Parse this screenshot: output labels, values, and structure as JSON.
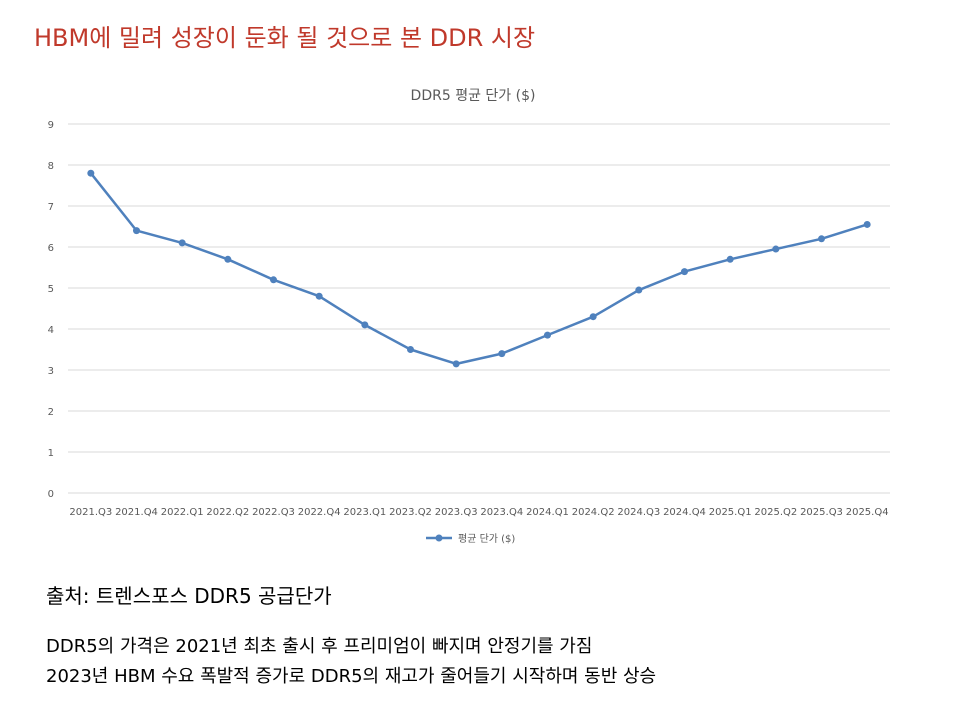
{
  "slide": {
    "title": "HBM에 밀려 성장이 둔화 될 것으로 본 DDR 시장",
    "source": "출처: 트렌스포스 DDR5 공급단가",
    "notes": [
      "DDR5의 가격은 2021년 최초 출시 후 프리미엄이 빠지며 안정기를 가짐",
      "2023년 HBM 수요 폭발적 증가로 DDR5의 재고가 줄어들기 시작하며 동반 상승"
    ]
  },
  "colors": {
    "title": "#c0392b",
    "series": "#4f81bd",
    "grid": "#d9d9d9",
    "text": "#595959"
  },
  "chart_data": {
    "type": "line",
    "title": "DDR5 평균 단가 ($)",
    "categories": [
      "2021.Q3",
      "2021.Q4",
      "2022.Q1",
      "2022.Q2",
      "2022.Q3",
      "2022.Q4",
      "2023.Q1",
      "2023.Q2",
      "2023.Q3",
      "2023.Q4",
      "2024.Q1",
      "2024.Q2",
      "2024.Q3",
      "2024.Q4",
      "2025.Q1",
      "2025.Q2",
      "2025.Q3",
      "2025.Q4"
    ],
    "series": [
      {
        "name": "평균 단가 ($)",
        "values": [
          7.8,
          6.4,
          6.1,
          5.7,
          5.2,
          4.8,
          4.1,
          3.5,
          3.15,
          3.4,
          3.85,
          4.3,
          4.95,
          5.4,
          5.7,
          5.95,
          6.2,
          6.55
        ]
      }
    ],
    "ylim": [
      0,
      9
    ],
    "yticks": [
      0,
      1,
      2,
      3,
      4,
      5,
      6,
      7,
      8,
      9
    ],
    "grid": true,
    "legend": "bottom"
  }
}
